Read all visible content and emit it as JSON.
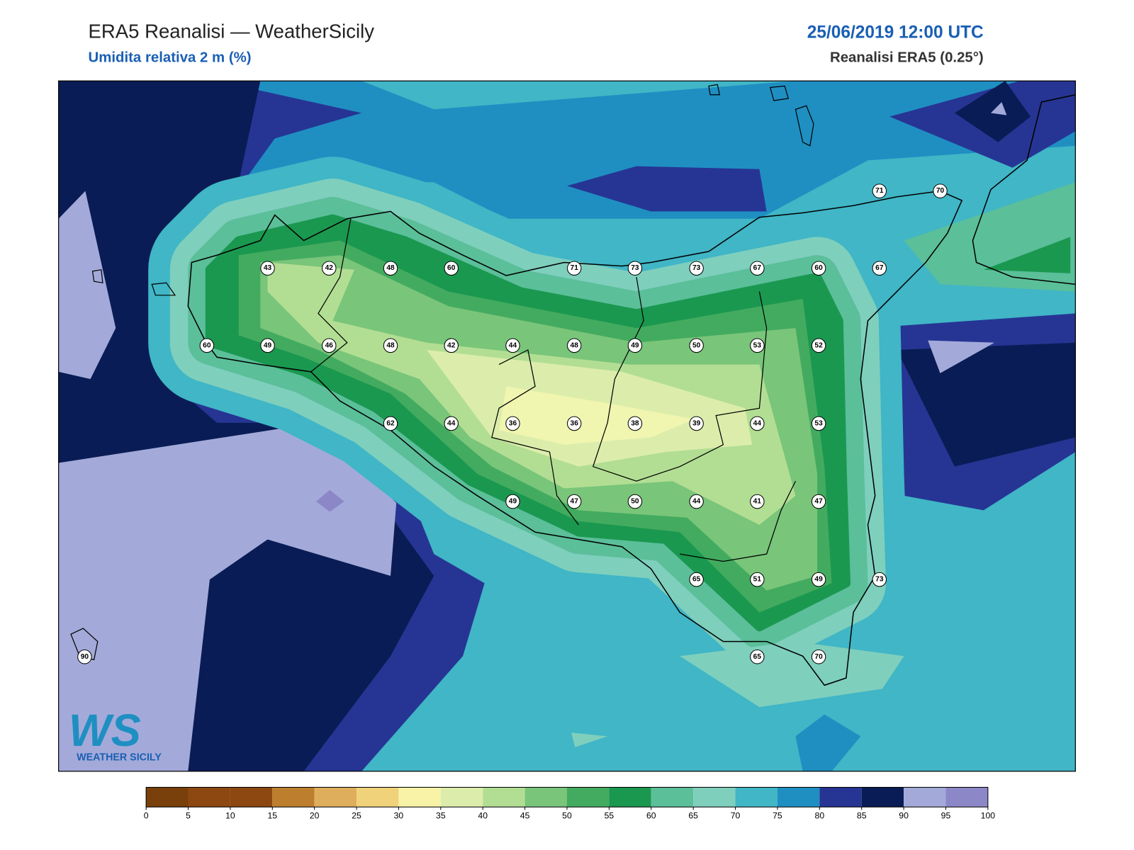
{
  "header": {
    "title": "ERA5 Reanalisi — WeatherSicily",
    "subtitle": "Umidita relativa 2 m (%)",
    "datetime": "25/06/2019 12:00 UTC",
    "source": "Reanalisi ERA5 (0.25°)"
  },
  "stations": [
    71,
    70,
    43,
    42,
    48,
    60,
    71,
    73,
    73,
    67,
    60,
    67,
    60,
    49,
    46,
    48,
    42,
    44,
    48,
    49,
    50,
    53,
    52,
    62,
    44,
    36,
    36,
    38,
    39,
    44,
    53,
    49,
    47,
    50,
    44,
    41,
    47,
    65,
    51,
    49,
    73,
    90,
    65,
    70
  ],
  "colorbar": {
    "ticks": [
      0,
      5,
      10,
      15,
      20,
      25,
      30,
      35,
      40,
      45,
      50,
      55,
      60,
      65,
      70,
      75,
      80,
      85,
      90,
      95,
      100
    ],
    "colors": [
      "#7a400b",
      "#8c4810",
      "#8c4810",
      "#bd7f2e",
      "#dfae5c",
      "#f0d27a",
      "#f8f3a6",
      "#dcedab",
      "#b2de93",
      "#79c57a",
      "#43ab5f",
      "#1b9850",
      "#5bbf9a",
      "#7fcfbd",
      "#40b6c6",
      "#1f8fc2",
      "#263594",
      "#0a1c55",
      "#a3aad9",
      "#8c87c7"
    ]
  },
  "logo": {
    "mark": "WS",
    "name": "WEATHER SICILY"
  }
}
